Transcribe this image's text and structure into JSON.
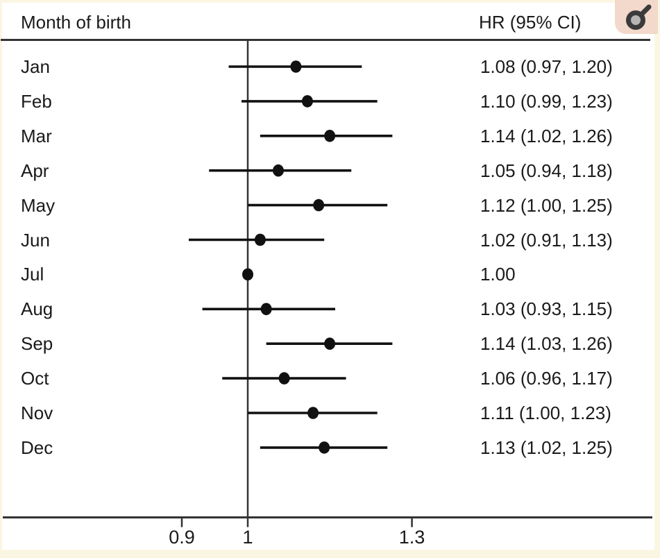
{
  "header": {
    "left_label": "Month of birth",
    "right_label": "HR (95% CI)",
    "badge_icon": "male-icon"
  },
  "colors": {
    "background": "#ffffff",
    "page_border": "#fbf6e2",
    "badge_background": "#f2d9cb",
    "line": "#333333",
    "marker": "#111111",
    "text": "#1a1a1a",
    "badge_symbol_stroke": "#3b3b3b",
    "badge_symbol_fill": "#b5b5b5"
  },
  "chart_data": {
    "type": "forest",
    "title": "",
    "xlabel": "",
    "ylabel": "Month of birth",
    "value_column_header": "HR (95% CI)",
    "x_scale": "log10",
    "x_ticks": [
      {
        "value": 0.9,
        "label": "0.9"
      },
      {
        "value": 1.0,
        "label": "1"
      },
      {
        "value": 1.3,
        "label": "1.3"
      }
    ],
    "reference_value": 1.0,
    "rows": [
      {
        "label": "Jan",
        "hr": 1.08,
        "lo": 0.97,
        "hi": 1.2,
        "text": "1.08 (0.97, 1.20)"
      },
      {
        "label": "Feb",
        "hr": 1.1,
        "lo": 0.99,
        "hi": 1.23,
        "text": "1.10 (0.99, 1.23)"
      },
      {
        "label": "Mar",
        "hr": 1.14,
        "lo": 1.02,
        "hi": 1.26,
        "text": "1.14 (1.02, 1.26)"
      },
      {
        "label": "Apr",
        "hr": 1.05,
        "lo": 0.94,
        "hi": 1.18,
        "text": "1.05 (0.94, 1.18)"
      },
      {
        "label": "May",
        "hr": 1.12,
        "lo": 1.0,
        "hi": 1.25,
        "text": "1.12 (1.00, 1.25)"
      },
      {
        "label": "Jun",
        "hr": 1.02,
        "lo": 0.91,
        "hi": 1.13,
        "text": "1.02 (0.91, 1.13)"
      },
      {
        "label": "Jul",
        "hr": 1.0,
        "lo": null,
        "hi": null,
        "text": "1.00"
      },
      {
        "label": "Aug",
        "hr": 1.03,
        "lo": 0.93,
        "hi": 1.15,
        "text": "1.03 (0.93, 1.15)"
      },
      {
        "label": "Sep",
        "hr": 1.14,
        "lo": 1.03,
        "hi": 1.26,
        "text": "1.14 (1.03, 1.26)"
      },
      {
        "label": "Oct",
        "hr": 1.06,
        "lo": 0.96,
        "hi": 1.17,
        "text": "1.06 (0.96, 1.17)"
      },
      {
        "label": "Nov",
        "hr": 1.11,
        "lo": 1.0,
        "hi": 1.23,
        "text": "1.11 (1.00, 1.23)"
      },
      {
        "label": "Dec",
        "hr": 1.13,
        "lo": 1.02,
        "hi": 1.25,
        "text": "1.13 (1.02, 1.25)"
      }
    ]
  }
}
